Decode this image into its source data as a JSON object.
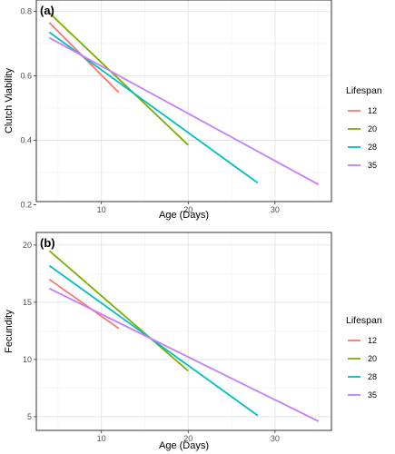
{
  "chart_data": [
    {
      "type": "line",
      "panel_label": "(a)",
      "title": "",
      "xlabel": "Age (Days)",
      "ylabel": "Clutch Viability",
      "xlim": [
        2.5,
        36.5
      ],
      "ylim": [
        0.21,
        0.835
      ],
      "x_ticks": [
        10,
        20,
        30
      ],
      "y_ticks": [
        0.2,
        0.4,
        0.6,
        0.8
      ],
      "y_tick_labels": [
        "0.2",
        "0.4",
        "0.6",
        "0.8"
      ],
      "grid": true,
      "legend_title": "Lifespan",
      "legend_position": "right",
      "series": [
        {
          "name": "12",
          "color": "#F8766D",
          "x": [
            4,
            12
          ],
          "y": [
            0.765,
            0.548
          ]
        },
        {
          "name": "20",
          "color": "#7CAE00",
          "x": [
            4,
            20
          ],
          "y": [
            0.795,
            0.385
          ]
        },
        {
          "name": "28",
          "color": "#00BFC4",
          "x": [
            4,
            28
          ],
          "y": [
            0.735,
            0.268
          ]
        },
        {
          "name": "35",
          "color": "#C77CFF",
          "x": [
            4,
            35
          ],
          "y": [
            0.718,
            0.263
          ]
        }
      ]
    },
    {
      "type": "line",
      "panel_label": "(b)",
      "title": "",
      "xlabel": "Age (Days)",
      "ylabel": "Fecundity",
      "xlim": [
        2.5,
        36.5
      ],
      "ylim": [
        3.8,
        21.1
      ],
      "x_ticks": [
        10,
        20,
        30
      ],
      "y_ticks": [
        5,
        10,
        15,
        20
      ],
      "y_tick_labels": [
        "5",
        "10",
        "15",
        "20"
      ],
      "grid": true,
      "legend_title": "Lifespan",
      "legend_position": "right",
      "series": [
        {
          "name": "12",
          "color": "#F8766D",
          "x": [
            4,
            12
          ],
          "y": [
            17.0,
            12.7
          ]
        },
        {
          "name": "20",
          "color": "#7CAE00",
          "x": [
            4,
            20
          ],
          "y": [
            19.5,
            9.0
          ]
        },
        {
          "name": "28",
          "color": "#00BFC4",
          "x": [
            4,
            28
          ],
          "y": [
            18.2,
            5.1
          ]
        },
        {
          "name": "35",
          "color": "#C77CFF",
          "x": [
            4,
            35
          ],
          "y": [
            16.2,
            4.6
          ]
        }
      ]
    }
  ]
}
